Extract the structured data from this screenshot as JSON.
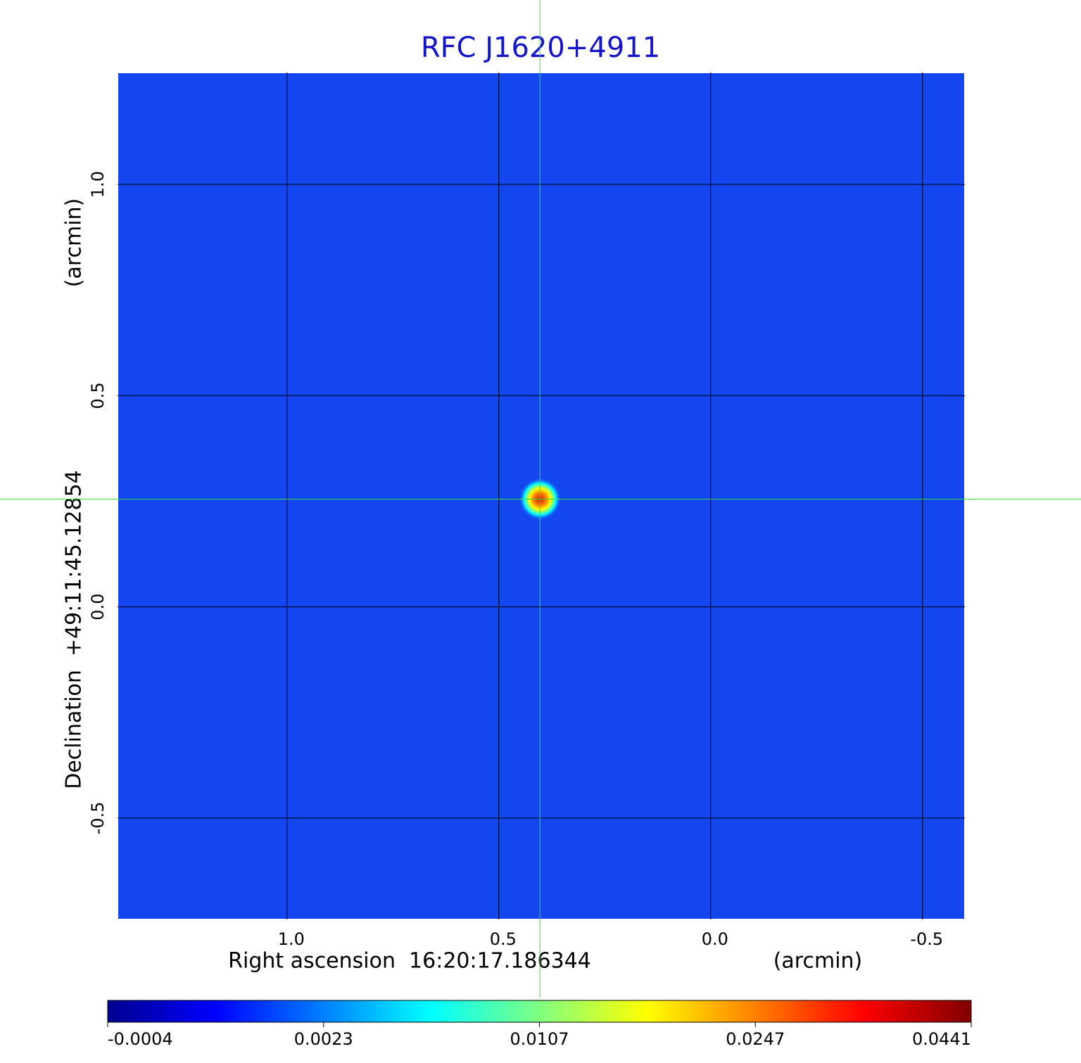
{
  "chart_data": {
    "type": "image",
    "title": "RFC J1620+4911",
    "x_label": "Right ascension  16:20:17.186344",
    "x_unit": "(arcmin)",
    "y_label": "Declination  +49:11:45.12854",
    "y_unit": "(arcmin)",
    "xlim": [
      1.4,
      -0.6
    ],
    "ylim": [
      -0.74,
      1.265
    ],
    "xticks": [
      {
        "value": 1.0,
        "label": "1.0"
      },
      {
        "value": 0.5,
        "label": "0.5"
      },
      {
        "value": 0.0,
        "label": "0.0"
      },
      {
        "value": -0.5,
        "label": "-0.5"
      }
    ],
    "yticks": [
      {
        "value": -0.5,
        "label": "-0.5"
      },
      {
        "value": 0.0,
        "label": "0.0"
      },
      {
        "value": 0.5,
        "label": "0.5"
      },
      {
        "value": 1.0,
        "label": "1.0"
      }
    ],
    "grid": true,
    "crosshair": {
      "x": 0.403,
      "y": 0.255,
      "color": "#33dd33"
    },
    "colorbar": {
      "ticks": [
        -0.0004,
        0.0023,
        0.0107,
        0.0247,
        0.0441
      ],
      "colors": [
        "#00008f",
        "#0000ff",
        "#0080ff",
        "#00ffff",
        "#80ff80",
        "#ffff00",
        "#ff8000",
        "#ff0000",
        "#800000"
      ]
    }
  }
}
